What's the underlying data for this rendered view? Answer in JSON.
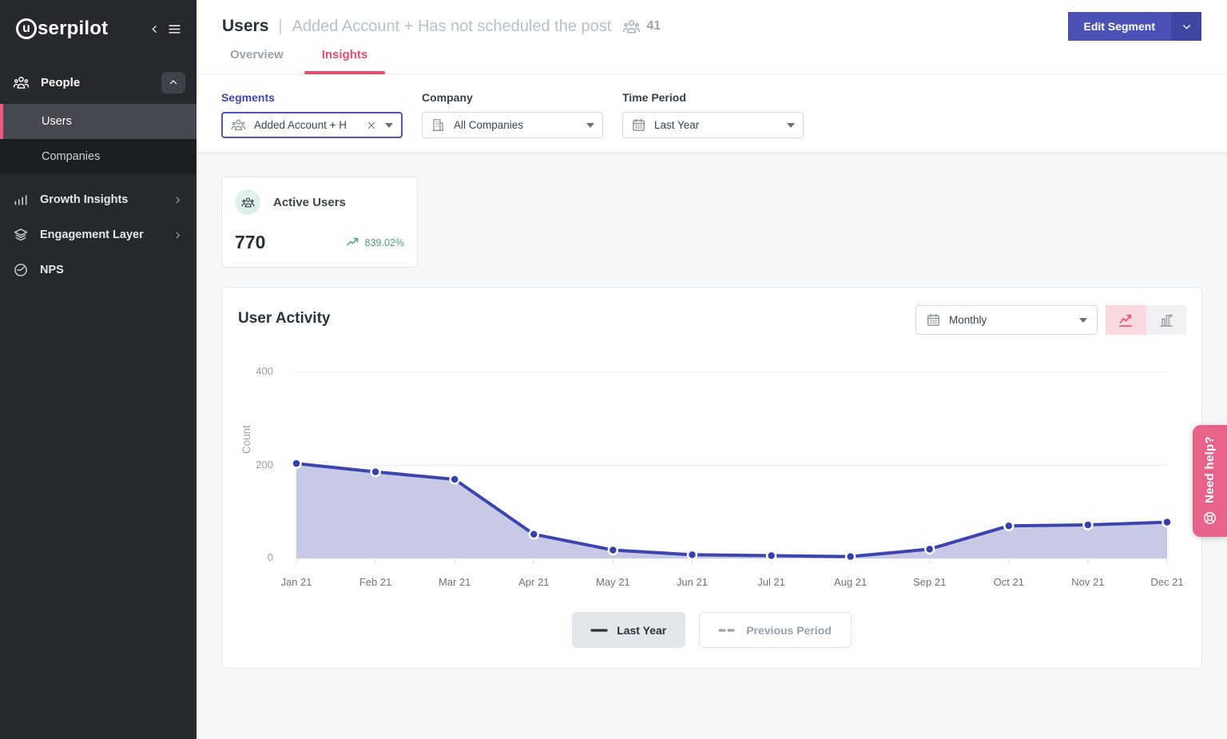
{
  "sidebar": {
    "logo": {
      "text": "userpilot",
      "circled_letter": "u",
      "rest": "serpilot"
    },
    "people": {
      "label": "People"
    },
    "users": {
      "label": "Users"
    },
    "companies": {
      "label": "Companies"
    },
    "growth_insights": {
      "label": "Growth Insights"
    },
    "engagement_layer": {
      "label": "Engagement Layer"
    },
    "nps": {
      "label": "NPS"
    }
  },
  "header": {
    "title": "Users",
    "separator": "|",
    "segment_name": "Added Account + Has not scheduled the post",
    "segment_user_count": "41",
    "edit_segment_label": "Edit Segment",
    "tabs": [
      {
        "label": "Overview",
        "active": false
      },
      {
        "label": "Insights",
        "active": true
      }
    ]
  },
  "filters": {
    "segments": {
      "label": "Segments",
      "value": "Added Account + H"
    },
    "company": {
      "label": "Company",
      "value": "All Companies"
    },
    "time_period": {
      "label": "Time Period",
      "value": "Last Year"
    }
  },
  "metric_card": {
    "label": "Active Users",
    "value": "770",
    "change_percent": "839.02%"
  },
  "chart_card": {
    "title": "User Activity",
    "granularity_value": "Monthly",
    "legend": {
      "last_year_label": "Last Year",
      "previous_period_label": "Previous Period"
    }
  },
  "chart_data": {
    "type": "area",
    "title": "User Activity",
    "categories": [
      "Jan 21",
      "Feb 21",
      "Mar 21",
      "Apr 21",
      "May 21",
      "Jun 21",
      "Jul 21",
      "Aug 21",
      "Sep 21",
      "Oct 21",
      "Nov 21",
      "Dec 21"
    ],
    "series": [
      {
        "name": "Last Year",
        "values": [
          204,
          186,
          170,
          52,
          18,
          8,
          6,
          4,
          20,
          70,
          72,
          78
        ]
      }
    ],
    "xlabel": "",
    "ylabel": "Count",
    "ylim": [
      0,
      400
    ],
    "yticks": [
      0,
      200,
      400
    ],
    "grid": true,
    "legend_position": "bottom"
  },
  "help_tab": {
    "label": "Need help?"
  },
  "colors": {
    "accent_pink": "#ea4a71",
    "indigo": "#4b51b5",
    "chart_line": "#3c45ae",
    "chart_fill": "#c7c9e6",
    "chart_dot": "#3640a9",
    "green": "#53a474",
    "help_pink": "#e8638a",
    "grid_line": "#eceef1",
    "baseline": "#e7eaec",
    "tick": "#d9dcdf",
    "x_label": "#6d747b"
  }
}
